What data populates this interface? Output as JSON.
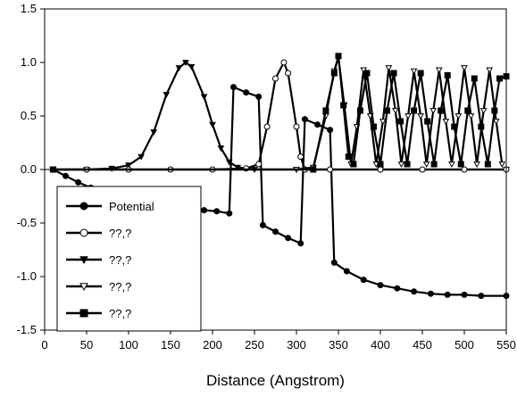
{
  "chart_data": {
    "type": "line",
    "xlabel": "Distance (Angstrom)",
    "ylabel": "",
    "xlim": [
      0,
      550
    ],
    "ylim": [
      -1.5,
      1.5
    ],
    "x_ticks": [
      0,
      50,
      100,
      150,
      200,
      250,
      300,
      350,
      400,
      450,
      500,
      550
    ],
    "y_ticks": [
      -1.5,
      -1.0,
      -0.5,
      0.0,
      0.5,
      1.0,
      1.5
    ],
    "x_tick_labels": [
      "0",
      "50",
      "100",
      "150",
      "200",
      "250",
      "300",
      "350",
      "400",
      "450",
      "500",
      "550"
    ],
    "y_tick_labels": [
      "-1.5",
      "-1.0",
      "-0.5",
      "0.0",
      "0.5",
      "1.0",
      "1.5"
    ],
    "legend_position": "lower-left",
    "series": [
      {
        "name": "Potential",
        "marker": "filled-circle",
        "x": [
          10,
          25,
          40,
          55,
          70,
          85,
          100,
          115,
          130,
          145,
          160,
          175,
          190,
          205,
          220,
          225,
          240,
          255,
          260,
          275,
          290,
          305,
          310,
          325,
          340,
          345,
          360,
          380,
          400,
          420,
          440,
          460,
          480,
          500,
          520,
          550
        ],
        "values": [
          0.0,
          -0.06,
          -0.12,
          -0.17,
          -0.22,
          -0.26,
          -0.29,
          -0.31,
          -0.33,
          -0.35,
          -0.36,
          -0.37,
          -0.38,
          -0.39,
          -0.41,
          0.77,
          0.72,
          0.68,
          -0.52,
          -0.58,
          -0.64,
          -0.69,
          0.47,
          0.42,
          0.37,
          -0.87,
          -0.95,
          -1.03,
          -1.08,
          -1.11,
          -1.14,
          -1.16,
          -1.17,
          -1.17,
          -1.18,
          -1.18
        ]
      },
      {
        "name": "??,?",
        "marker": "open-circle",
        "x": [
          10,
          50,
          100,
          150,
          200,
          240,
          255,
          265,
          275,
          285,
          290,
          300,
          305,
          310,
          320,
          340,
          400,
          450,
          500,
          550
        ],
        "values": [
          0.0,
          0.0,
          0.0,
          0.0,
          0.0,
          0.01,
          0.05,
          0.4,
          0.85,
          1.0,
          0.9,
          0.4,
          0.12,
          0.0,
          0.0,
          0.0,
          0.0,
          0.0,
          0.0,
          0.0
        ]
      },
      {
        "name": "??,?",
        "marker": "filled-triangle-down",
        "x": [
          10,
          50,
          80,
          100,
          115,
          130,
          145,
          160,
          168,
          175,
          190,
          200,
          210,
          220,
          230,
          250,
          300,
          400,
          550
        ],
        "values": [
          0.0,
          0.0,
          0.01,
          0.04,
          0.12,
          0.35,
          0.7,
          0.95,
          1.0,
          0.96,
          0.68,
          0.42,
          0.2,
          0.07,
          0.02,
          0.0,
          0.0,
          0.0,
          0.0
        ]
      },
      {
        "name": "??,?",
        "marker": "open-triangle-down",
        "x": [
          10,
          300,
          320,
          335,
          345,
          350,
          357,
          365,
          372,
          380,
          388,
          395,
          403,
          410,
          418,
          425,
          433,
          440,
          448,
          455,
          463,
          470,
          478,
          485,
          493,
          500,
          508,
          515,
          523,
          530,
          538,
          545
        ],
        "values": [
          0.0,
          0.0,
          0.02,
          0.5,
          0.92,
          1.05,
          0.6,
          0.05,
          0.4,
          0.93,
          0.5,
          0.05,
          0.45,
          0.95,
          0.55,
          0.05,
          0.5,
          0.92,
          0.5,
          0.05,
          0.55,
          0.93,
          0.45,
          0.05,
          0.5,
          0.95,
          0.5,
          0.05,
          0.55,
          0.93,
          0.45,
          0.05
        ]
      },
      {
        "name": "??,?",
        "marker": "filled-square",
        "x": [
          10,
          320,
          335,
          345,
          350,
          356,
          362,
          368,
          376,
          384,
          392,
          400,
          408,
          416,
          424,
          432,
          440,
          448,
          456,
          464,
          472,
          480,
          488,
          496,
          504,
          512,
          520,
          528,
          536,
          542,
          550
        ],
        "values": [
          0.0,
          0.0,
          0.55,
          0.9,
          1.06,
          0.6,
          0.12,
          0.05,
          0.55,
          0.9,
          0.4,
          0.05,
          0.55,
          0.9,
          0.45,
          0.05,
          0.55,
          0.9,
          0.45,
          0.05,
          0.55,
          0.88,
          0.4,
          0.05,
          0.55,
          0.85,
          0.4,
          0.05,
          0.55,
          0.85,
          0.87
        ]
      }
    ]
  }
}
